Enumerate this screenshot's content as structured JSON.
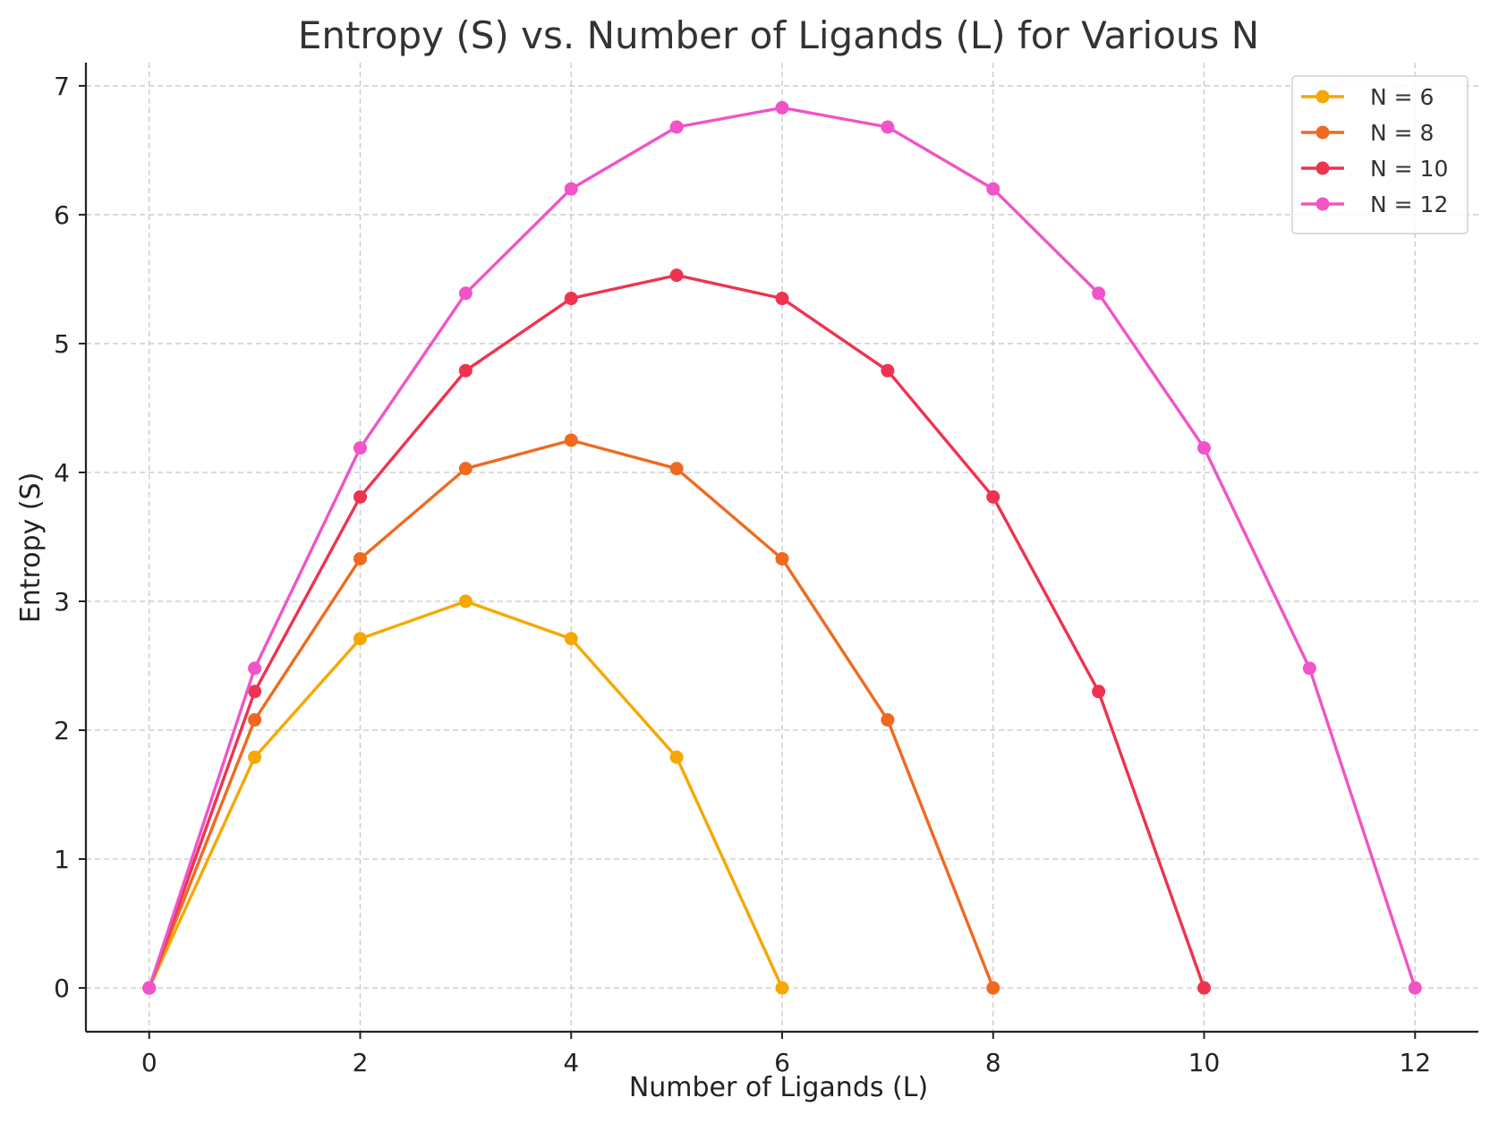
{
  "chart_data": {
    "type": "line",
    "title": "Entropy (S) vs. Number of Ligands (L) for Various N",
    "xlabel": "Number of Ligands (L)",
    "ylabel": "Entropy (S)",
    "xlim": [
      -0.6,
      12.6
    ],
    "ylim": [
      -0.34,
      7.18
    ],
    "xticks": [
      0,
      2,
      4,
      6,
      8,
      10,
      12
    ],
    "yticks": [
      0,
      1,
      2,
      3,
      4,
      5,
      6,
      7
    ],
    "grid": true,
    "legend_position": "top-right",
    "series": [
      {
        "name": "N = 6",
        "color": "#f5a800",
        "x": [
          0,
          1,
          2,
          3,
          4,
          5,
          6
        ],
        "values": [
          0,
          1.79,
          2.71,
          3.0,
          2.71,
          1.79,
          0
        ]
      },
      {
        "name": "N = 8",
        "color": "#ef6a1f",
        "x": [
          0,
          1,
          2,
          3,
          4,
          5,
          6,
          7,
          8
        ],
        "values": [
          0,
          2.08,
          3.33,
          4.03,
          4.25,
          4.03,
          3.33,
          2.08,
          0
        ]
      },
      {
        "name": "N = 10",
        "color": "#ee3350",
        "x": [
          0,
          1,
          2,
          3,
          4,
          5,
          6,
          7,
          8,
          9,
          10
        ],
        "values": [
          0,
          2.3,
          3.81,
          4.79,
          5.35,
          5.53,
          5.35,
          4.79,
          3.81,
          2.3,
          0
        ]
      },
      {
        "name": "N = 12",
        "color": "#f054c8",
        "x": [
          0,
          1,
          2,
          3,
          4,
          5,
          6,
          7,
          8,
          9,
          10,
          11,
          12
        ],
        "values": [
          0,
          2.48,
          4.19,
          5.39,
          6.2,
          6.68,
          6.83,
          6.68,
          6.2,
          5.39,
          4.19,
          2.48,
          0
        ]
      }
    ]
  }
}
